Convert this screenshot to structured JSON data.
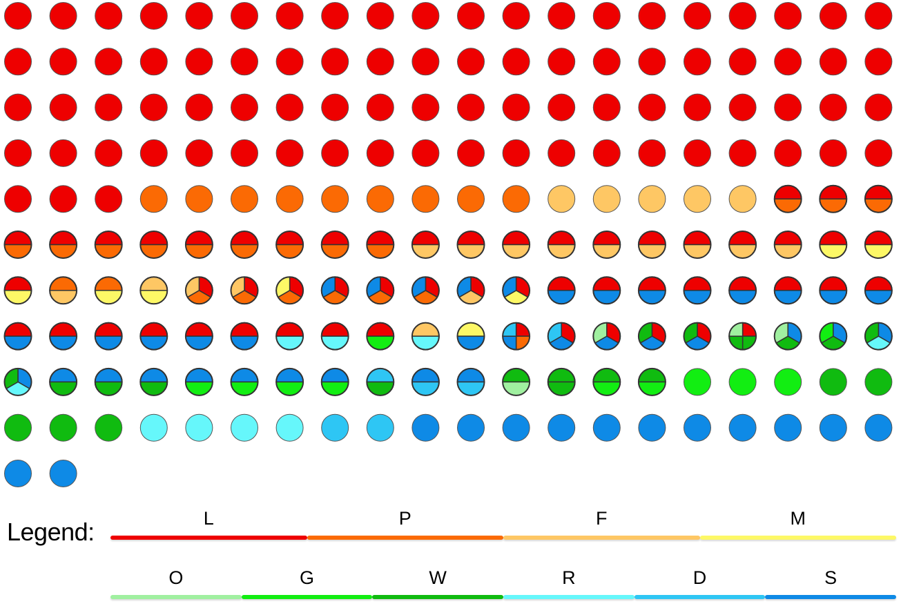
{
  "colors": {
    "L": "#ee0000",
    "P": "#fb6a04",
    "F": "#fec764",
    "M": "#fdf866",
    "O": "#a0f0a0",
    "G": "#12ee12",
    "W": "#10bb10",
    "R": "#66f7fb",
    "D": "#2ec6f4",
    "S": "#0e8ae6"
  },
  "legend": {
    "title": "Legend:",
    "row1": [
      "L",
      "P",
      "F",
      "M"
    ],
    "row2": [
      "O",
      "G",
      "W",
      "R",
      "D",
      "S"
    ]
  },
  "grid": {
    "columns": 20,
    "rows": [
      [
        [
          "L"
        ],
        [
          "L"
        ],
        [
          "L"
        ],
        [
          "L"
        ],
        [
          "L"
        ],
        [
          "L"
        ],
        [
          "L"
        ],
        [
          "L"
        ],
        [
          "L"
        ],
        [
          "L"
        ],
        [
          "L"
        ],
        [
          "L"
        ],
        [
          "L"
        ],
        [
          "L"
        ],
        [
          "L"
        ],
        [
          "L"
        ],
        [
          "L"
        ],
        [
          "L"
        ],
        [
          "L"
        ],
        [
          "L"
        ]
      ],
      [
        [
          "L"
        ],
        [
          "L"
        ],
        [
          "L"
        ],
        [
          "L"
        ],
        [
          "L"
        ],
        [
          "L"
        ],
        [
          "L"
        ],
        [
          "L"
        ],
        [
          "L"
        ],
        [
          "L"
        ],
        [
          "L"
        ],
        [
          "L"
        ],
        [
          "L"
        ],
        [
          "L"
        ],
        [
          "L"
        ],
        [
          "L"
        ],
        [
          "L"
        ],
        [
          "L"
        ],
        [
          "L"
        ],
        [
          "L"
        ]
      ],
      [
        [
          "L"
        ],
        [
          "L"
        ],
        [
          "L"
        ],
        [
          "L"
        ],
        [
          "L"
        ],
        [
          "L"
        ],
        [
          "L"
        ],
        [
          "L"
        ],
        [
          "L"
        ],
        [
          "L"
        ],
        [
          "L"
        ],
        [
          "L"
        ],
        [
          "L"
        ],
        [
          "L"
        ],
        [
          "L"
        ],
        [
          "L"
        ],
        [
          "L"
        ],
        [
          "L"
        ],
        [
          "L"
        ],
        [
          "L"
        ]
      ],
      [
        [
          "L"
        ],
        [
          "L"
        ],
        [
          "L"
        ],
        [
          "L"
        ],
        [
          "L"
        ],
        [
          "L"
        ],
        [
          "L"
        ],
        [
          "L"
        ],
        [
          "L"
        ],
        [
          "L"
        ],
        [
          "L"
        ],
        [
          "L"
        ],
        [
          "L"
        ],
        [
          "L"
        ],
        [
          "L"
        ],
        [
          "L"
        ],
        [
          "L"
        ],
        [
          "L"
        ],
        [
          "L"
        ],
        [
          "L"
        ]
      ],
      [
        [
          "L"
        ],
        [
          "L"
        ],
        [
          "L"
        ],
        [
          "P"
        ],
        [
          "P"
        ],
        [
          "P"
        ],
        [
          "P"
        ],
        [
          "P"
        ],
        [
          "P"
        ],
        [
          "P"
        ],
        [
          "P"
        ],
        [
          "P"
        ],
        [
          "F"
        ],
        [
          "F"
        ],
        [
          "F"
        ],
        [
          "F"
        ],
        [
          "F"
        ],
        [
          "L",
          "P"
        ],
        [
          "L",
          "P"
        ],
        [
          "L",
          "P"
        ]
      ],
      [
        [
          "L",
          "P"
        ],
        [
          "L",
          "P"
        ],
        [
          "L",
          "P"
        ],
        [
          "L",
          "P"
        ],
        [
          "L",
          "P"
        ],
        [
          "L",
          "P"
        ],
        [
          "L",
          "P"
        ],
        [
          "L",
          "P"
        ],
        [
          "L",
          "P"
        ],
        [
          "L",
          "F"
        ],
        [
          "L",
          "F"
        ],
        [
          "L",
          "F"
        ],
        [
          "L",
          "F"
        ],
        [
          "L",
          "F"
        ],
        [
          "L",
          "F"
        ],
        [
          "L",
          "F"
        ],
        [
          "L",
          "F"
        ],
        [
          "L",
          "F"
        ],
        [
          "L",
          "M"
        ],
        [
          "L",
          "M"
        ]
      ],
      [
        [
          "L",
          "M"
        ],
        [
          "P",
          "F"
        ],
        [
          "P",
          "M"
        ],
        [
          "F",
          "M"
        ],
        [
          "L",
          "P",
          "F"
        ],
        [
          "L",
          "P",
          "F"
        ],
        [
          "L",
          "P",
          "M"
        ],
        [
          "L",
          "P",
          "S"
        ],
        [
          "L",
          "P",
          "S"
        ],
        [
          "L",
          "P",
          "S"
        ],
        [
          "L",
          "F",
          "S"
        ],
        [
          "L",
          "M",
          "S"
        ],
        [
          "L",
          "S"
        ],
        [
          "L",
          "S"
        ],
        [
          "L",
          "S"
        ],
        [
          "L",
          "S"
        ],
        [
          "L",
          "S"
        ],
        [
          "L",
          "S"
        ],
        [
          "L",
          "S"
        ],
        [
          "L",
          "S"
        ]
      ],
      [
        [
          "L",
          "S"
        ],
        [
          "L",
          "S"
        ],
        [
          "L",
          "S"
        ],
        [
          "L",
          "S"
        ],
        [
          "L",
          "S"
        ],
        [
          "L",
          "S"
        ],
        [
          "L",
          "R"
        ],
        [
          "L",
          "R"
        ],
        [
          "L",
          "G"
        ],
        [
          "F",
          "R"
        ],
        [
          "M",
          "S"
        ],
        [
          "L",
          "P",
          "S",
          "D"
        ],
        [
          "L",
          "S",
          "D"
        ],
        [
          "L",
          "S",
          "O"
        ],
        [
          "L",
          "S",
          "W"
        ],
        [
          "L",
          "S",
          "W"
        ],
        [
          "L",
          "W",
          "W",
          "O"
        ],
        [
          "S",
          "W",
          "O"
        ],
        [
          "S",
          "W",
          "G"
        ],
        [
          "S",
          "R",
          "W"
        ]
      ],
      [
        [
          "S",
          "R",
          "W"
        ],
        [
          "S",
          "W"
        ],
        [
          "S",
          "W"
        ],
        [
          "S",
          "W"
        ],
        [
          "S",
          "G"
        ],
        [
          "S",
          "G"
        ],
        [
          "S",
          "G"
        ],
        [
          "S",
          "G"
        ],
        [
          "D",
          "W"
        ],
        [
          "S",
          "D"
        ],
        [
          "S",
          "D"
        ],
        [
          "W",
          "O"
        ],
        [
          "W",
          "W"
        ],
        [
          "W",
          "G"
        ],
        [
          "W",
          "G"
        ],
        [
          "G"
        ],
        [
          "G"
        ],
        [
          "G"
        ],
        [
          "W"
        ],
        [
          "W"
        ]
      ],
      [
        [
          "W"
        ],
        [
          "W"
        ],
        [
          "W"
        ],
        [
          "R"
        ],
        [
          "R"
        ],
        [
          "R"
        ],
        [
          "R"
        ],
        [
          "D"
        ],
        [
          "D"
        ],
        [
          "S"
        ],
        [
          "S"
        ],
        [
          "S"
        ],
        [
          "S"
        ],
        [
          "S"
        ],
        [
          "S"
        ],
        [
          "S"
        ],
        [
          "S"
        ],
        [
          "S"
        ],
        [
          "S"
        ],
        [
          "S"
        ]
      ],
      [
        [
          "S"
        ],
        [
          "S"
        ]
      ]
    ]
  }
}
